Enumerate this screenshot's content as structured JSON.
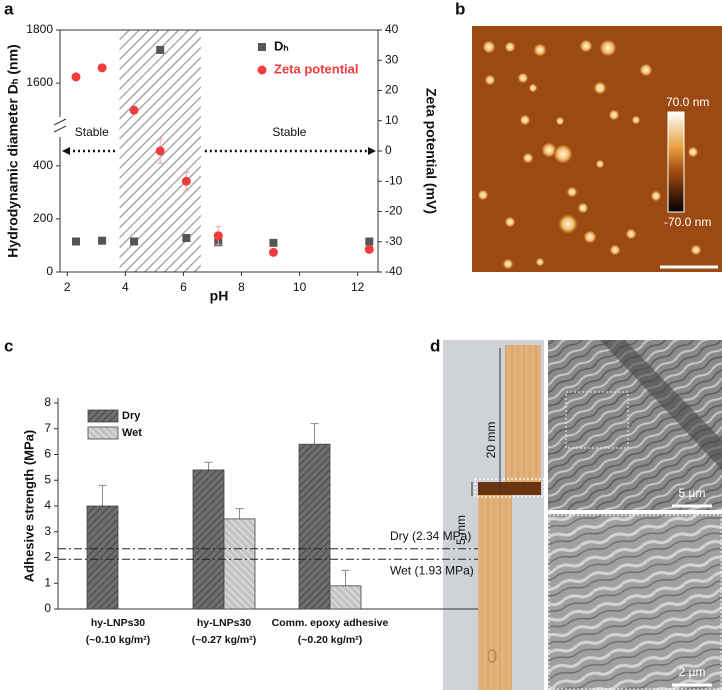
{
  "panel_labels": [
    "a",
    "b",
    "c",
    "d"
  ],
  "chart_data": [
    {
      "type": "scatter",
      "x_label": "pH",
      "y_label": "Hydrodynamic diameter Dₕ (nm)",
      "y2_label": "Zeta potential (mV)",
      "xlim": [
        1.75,
        12.7
      ],
      "xticks": [
        2,
        4,
        6,
        8,
        10,
        12
      ],
      "ylim": [
        0,
        1800
      ],
      "y_break": [
        480,
        1500
      ],
      "yticks": [
        0,
        200,
        400,
        1600,
        1800
      ],
      "y2lim": [
        -40,
        40
      ],
      "y2ticks": [
        -40,
        -30,
        -20,
        -10,
        0,
        10,
        20,
        30,
        40
      ],
      "shaded_range": [
        3.8,
        6.6
      ],
      "annotations": [
        "Stable",
        "Stable"
      ],
      "legend": "upper right",
      "series": [
        {
          "name": "Dₕ",
          "color": "#555555",
          "marker": "square",
          "x": [
            2.3,
            3.2,
            4.3,
            5.2,
            6.1,
            7.2,
            9.1,
            12.4
          ],
          "values": [
            115,
            118,
            115,
            1725,
            128,
            112,
            110,
            115
          ]
        },
        {
          "name": "Zeta potential",
          "color": "#f03c3c",
          "marker": "circle",
          "axis": "y2",
          "x": [
            2.3,
            3.2,
            4.3,
            5.2,
            6.1,
            7.2,
            9.1,
            12.4
          ],
          "values": [
            24.5,
            27.5,
            13.5,
            0,
            -10,
            -28,
            -33.5,
            -32.5
          ],
          "errors": [
            1,
            1,
            1,
            4,
            3,
            3,
            1,
            1
          ]
        }
      ]
    },
    {
      "type": "bar",
      "y_label": "Adhesive strength (MPa)",
      "categories": [
        [
          "hy-LNPs30",
          "(~0.10 kg/m²)"
        ],
        [
          "hy-LNPs30",
          "(~0.27 kg/m²)"
        ],
        [
          "Comm. epoxy adhesive",
          "(~0.20 kg/m²)"
        ]
      ],
      "ylim": [
        0,
        8
      ],
      "yticks": [
        0,
        1,
        2,
        3,
        4,
        5,
        6,
        7,
        8
      ],
      "legend": "upper left",
      "series": [
        {
          "name": "Dry",
          "color": "#6e6e6e",
          "values": [
            4.0,
            5.4,
            6.4
          ],
          "errors": [
            0.8,
            0.3,
            0.8
          ]
        },
        {
          "name": "Wet",
          "color": "#c4c4c4",
          "values": [
            null,
            3.5,
            0.9
          ],
          "errors": [
            null,
            0.4,
            0.6
          ]
        }
      ],
      "reference_lines": [
        {
          "value": 2.34,
          "label": "Dry (2.34 MPa)"
        },
        {
          "value": 1.93,
          "label": "Wet (1.93 MPa)"
        }
      ]
    }
  ],
  "afm": {
    "scale_max": "70.0 nm",
    "scale_min": "-70.0 nm"
  },
  "photo": {
    "length": "20 mm",
    "width": "5 mm",
    "sem_scale_top": "5 µm",
    "sem_scale_bottom": "2 µm"
  }
}
